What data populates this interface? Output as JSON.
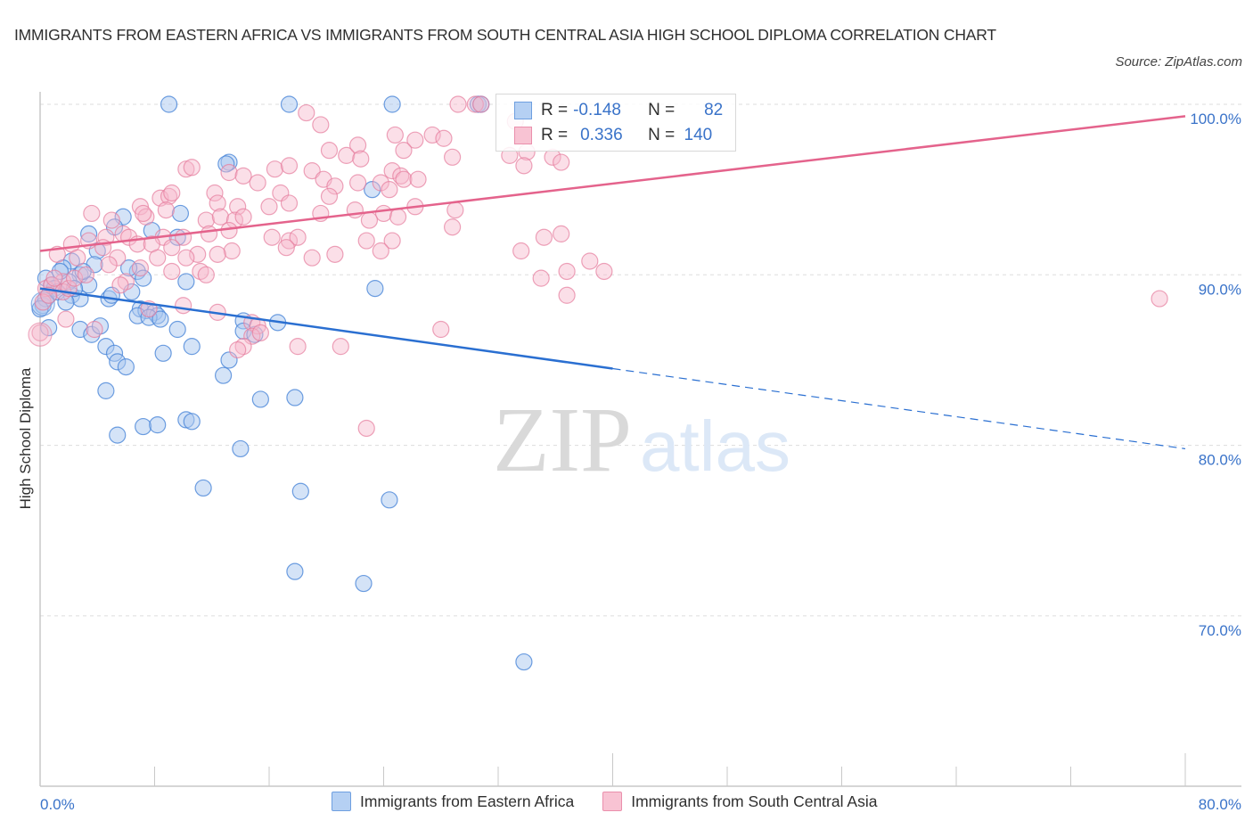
{
  "title": "IMMIGRANTS FROM EASTERN AFRICA VS IMMIGRANTS FROM SOUTH CENTRAL ASIA HIGH SCHOOL DIPLOMA CORRELATION CHART",
  "source": "Source: ZipAtlas.com",
  "watermark": {
    "zip": "ZIP",
    "atlas": "atlas"
  },
  "colors": {
    "blue_fill": "#a9c8f0",
    "blue_stroke": "#4a86d8",
    "blue_line": "#2a6fd1",
    "pink_fill": "#f6b9cc",
    "pink_stroke": "#e67c9c",
    "pink_line": "#e4638c",
    "tick_text": "#3a73c9"
  },
  "stats_legend": [
    {
      "series": "Immigrants from Eastern Africa",
      "r_label": "R =",
      "r_value": "-0.148",
      "n_label": "N =",
      "n_value": "82",
      "color": "blue"
    },
    {
      "series": "Immigrants from South Central Asia",
      "r_label": "R =",
      "r_value": "0.336",
      "n_label": "N =",
      "n_value": "140",
      "color": "pink"
    }
  ],
  "chart_data": {
    "type": "scatter",
    "title": "IMMIGRANTS FROM EASTERN AFRICA VS IMMIGRANTS FROM SOUTH CENTRAL ASIA HIGH SCHOOL DIPLOMA CORRELATION CHART",
    "xlabel": "",
    "ylabel": "High School Diploma",
    "xlim": [
      0,
      80
    ],
    "ylim": [
      61.5,
      101
    ],
    "x_tick_labels": [
      "0.0%",
      "80.0%"
    ],
    "y_ticks": [
      100,
      90,
      80,
      70
    ],
    "y_tick_labels": [
      "100.0%",
      "90.0%",
      "80.0%",
      "70.0%"
    ],
    "grid": true,
    "legend_position": "bottom",
    "series": [
      {
        "name": "Immigrants from Eastern Africa",
        "color": "blue",
        "R": -0.148,
        "N": 82,
        "trend": {
          "x0": 0,
          "y0": 89.2,
          "x1": 80,
          "y1": 79.8,
          "solid_until_x": 40
        },
        "points": [
          [
            9.0,
            100.0
          ],
          [
            17.4,
            100.0
          ],
          [
            24.6,
            100.0
          ],
          [
            30.6,
            100.0
          ],
          [
            13.2,
            96.6
          ],
          [
            13.0,
            96.5
          ],
          [
            23.2,
            95.0
          ],
          [
            5.8,
            93.4
          ],
          [
            9.8,
            93.6
          ],
          [
            3.4,
            92.4
          ],
          [
            5.2,
            92.8
          ],
          [
            7.8,
            92.6
          ],
          [
            9.6,
            92.2
          ],
          [
            4.0,
            91.4
          ],
          [
            2.2,
            90.8
          ],
          [
            3.8,
            90.6
          ],
          [
            1.6,
            90.4
          ],
          [
            2.8,
            90.0
          ],
          [
            6.8,
            90.2
          ],
          [
            7.2,
            89.8
          ],
          [
            10.2,
            89.6
          ],
          [
            0.4,
            89.8
          ],
          [
            0.8,
            89.4
          ],
          [
            1.0,
            89.2
          ],
          [
            0.6,
            88.8
          ],
          [
            0.2,
            88.2
          ],
          [
            0.4,
            88.6
          ],
          [
            3.4,
            89.4
          ],
          [
            2.2,
            88.8
          ],
          [
            2.8,
            88.6
          ],
          [
            4.8,
            88.6
          ],
          [
            5.0,
            88.8
          ],
          [
            6.4,
            89.0
          ],
          [
            7.0,
            88.0
          ],
          [
            7.4,
            87.9
          ],
          [
            8.0,
            87.8
          ],
          [
            8.2,
            87.6
          ],
          [
            6.8,
            87.6
          ],
          [
            7.6,
            87.5
          ],
          [
            8.4,
            87.4
          ],
          [
            9.6,
            86.8
          ],
          [
            14.2,
            87.3
          ],
          [
            16.6,
            87.2
          ],
          [
            14.2,
            86.7
          ],
          [
            15.0,
            86.5
          ],
          [
            0.6,
            86.9
          ],
          [
            2.8,
            86.8
          ],
          [
            3.6,
            86.5
          ],
          [
            4.6,
            85.8
          ],
          [
            5.2,
            85.4
          ],
          [
            8.6,
            85.4
          ],
          [
            10.6,
            85.8
          ],
          [
            13.2,
            85.0
          ],
          [
            5.4,
            84.9
          ],
          [
            6.0,
            84.6
          ],
          [
            12.8,
            84.1
          ],
          [
            4.6,
            83.2
          ],
          [
            15.4,
            82.7
          ],
          [
            17.8,
            82.8
          ],
          [
            10.2,
            81.5
          ],
          [
            10.6,
            81.4
          ],
          [
            7.2,
            81.1
          ],
          [
            8.2,
            81.2
          ],
          [
            5.4,
            80.6
          ],
          [
            14.0,
            79.8
          ],
          [
            11.4,
            77.5
          ],
          [
            18.2,
            77.3
          ],
          [
            24.4,
            76.8
          ],
          [
            17.8,
            72.6
          ],
          [
            22.6,
            71.9
          ],
          [
            33.8,
            67.3
          ],
          [
            23.4,
            89.2
          ],
          [
            30.8,
            100.0
          ],
          [
            1.2,
            89.0
          ],
          [
            2.0,
            89.6
          ],
          [
            0.0,
            88.0
          ],
          [
            1.8,
            88.4
          ],
          [
            4.2,
            87.0
          ],
          [
            2.4,
            89.2
          ],
          [
            3.0,
            90.2
          ],
          [
            6.2,
            90.4
          ],
          [
            1.4,
            90.2
          ]
        ]
      },
      {
        "name": "Immigrants from South Central Asia",
        "color": "pink",
        "R": 0.336,
        "N": 140,
        "trend": {
          "x0": 0,
          "y0": 91.4,
          "x1": 80,
          "y1": 99.3,
          "solid_until_x": 80
        },
        "points": [
          [
            29.2,
            100.0
          ],
          [
            30.4,
            100.0
          ],
          [
            30.8,
            100.0
          ],
          [
            33.2,
            99.0
          ],
          [
            18.6,
            99.5
          ],
          [
            19.6,
            98.8
          ],
          [
            24.8,
            98.2
          ],
          [
            26.2,
            97.9
          ],
          [
            27.4,
            98.2
          ],
          [
            28.2,
            98.0
          ],
          [
            20.2,
            97.3
          ],
          [
            21.4,
            97.0
          ],
          [
            22.2,
            97.6
          ],
          [
            22.4,
            96.8
          ],
          [
            25.4,
            97.3
          ],
          [
            28.8,
            96.9
          ],
          [
            32.8,
            97.0
          ],
          [
            34.0,
            97.2
          ],
          [
            35.8,
            96.9
          ],
          [
            36.4,
            96.6
          ],
          [
            33.8,
            96.4
          ],
          [
            16.4,
            96.2
          ],
          [
            17.4,
            96.4
          ],
          [
            19.0,
            96.1
          ],
          [
            10.2,
            96.2
          ],
          [
            10.6,
            96.3
          ],
          [
            13.2,
            96.0
          ],
          [
            14.2,
            95.8
          ],
          [
            15.2,
            95.4
          ],
          [
            19.8,
            95.6
          ],
          [
            20.6,
            95.2
          ],
          [
            22.2,
            95.4
          ],
          [
            23.8,
            95.4
          ],
          [
            24.6,
            96.1
          ],
          [
            25.2,
            95.8
          ],
          [
            25.4,
            95.6
          ],
          [
            24.4,
            95.0
          ],
          [
            26.4,
            95.6
          ],
          [
            16.8,
            94.8
          ],
          [
            17.4,
            94.2
          ],
          [
            20.2,
            94.6
          ],
          [
            12.2,
            94.8
          ],
          [
            8.4,
            94.5
          ],
          [
            9.0,
            94.6
          ],
          [
            9.2,
            94.8
          ],
          [
            7.0,
            94.0
          ],
          [
            8.8,
            93.8
          ],
          [
            12.4,
            94.2
          ],
          [
            13.8,
            94.0
          ],
          [
            16.0,
            94.0
          ],
          [
            19.6,
            93.6
          ],
          [
            22.0,
            93.8
          ],
          [
            24.0,
            93.6
          ],
          [
            25.0,
            93.4
          ],
          [
            29.0,
            93.8
          ],
          [
            26.2,
            94.0
          ],
          [
            3.6,
            93.6
          ],
          [
            5.0,
            93.2
          ],
          [
            7.4,
            93.4
          ],
          [
            7.2,
            93.6
          ],
          [
            11.6,
            93.2
          ],
          [
            12.6,
            93.4
          ],
          [
            13.6,
            93.2
          ],
          [
            14.2,
            93.4
          ],
          [
            23.0,
            93.2
          ],
          [
            28.8,
            92.8
          ],
          [
            5.8,
            92.4
          ],
          [
            4.6,
            92.2
          ],
          [
            6.2,
            92.2
          ],
          [
            8.6,
            92.2
          ],
          [
            10.0,
            92.2
          ],
          [
            11.8,
            92.4
          ],
          [
            13.2,
            92.6
          ],
          [
            16.2,
            92.2
          ],
          [
            17.4,
            92.0
          ],
          [
            18.0,
            92.2
          ],
          [
            22.8,
            92.0
          ],
          [
            24.6,
            92.0
          ],
          [
            35.2,
            92.2
          ],
          [
            36.4,
            92.4
          ],
          [
            2.2,
            91.8
          ],
          [
            3.4,
            92.0
          ],
          [
            4.4,
            91.6
          ],
          [
            6.8,
            91.8
          ],
          [
            7.8,
            91.8
          ],
          [
            9.2,
            91.6
          ],
          [
            11.0,
            91.2
          ],
          [
            13.4,
            91.4
          ],
          [
            17.2,
            91.6
          ],
          [
            20.6,
            91.2
          ],
          [
            23.8,
            91.4
          ],
          [
            33.6,
            91.4
          ],
          [
            1.2,
            91.2
          ],
          [
            2.6,
            91.0
          ],
          [
            5.4,
            91.0
          ],
          [
            8.2,
            91.0
          ],
          [
            10.2,
            91.0
          ],
          [
            12.4,
            91.2
          ],
          [
            19.0,
            91.0
          ],
          [
            38.4,
            90.8
          ],
          [
            36.8,
            90.2
          ],
          [
            35.0,
            89.8
          ],
          [
            39.4,
            90.2
          ],
          [
            4.8,
            90.6
          ],
          [
            7.0,
            90.4
          ],
          [
            9.2,
            90.2
          ],
          [
            11.2,
            90.2
          ],
          [
            11.6,
            90.0
          ],
          [
            6.0,
            89.6
          ],
          [
            1.6,
            89.6
          ],
          [
            0.4,
            89.2
          ],
          [
            0.8,
            89.4
          ],
          [
            1.6,
            89.0
          ],
          [
            2.0,
            89.2
          ],
          [
            2.4,
            89.8
          ],
          [
            0.2,
            88.4
          ],
          [
            36.8,
            88.8
          ],
          [
            78.2,
            88.6
          ],
          [
            7.6,
            88.0
          ],
          [
            10.0,
            88.2
          ],
          [
            12.4,
            87.8
          ],
          [
            14.8,
            87.2
          ],
          [
            15.2,
            87.0
          ],
          [
            1.8,
            87.4
          ],
          [
            3.8,
            86.8
          ],
          [
            14.8,
            86.4
          ],
          [
            15.4,
            86.6
          ],
          [
            0.0,
            86.6
          ],
          [
            14.2,
            85.8
          ],
          [
            28.0,
            86.8
          ],
          [
            18.0,
            85.8
          ],
          [
            21.0,
            85.8
          ],
          [
            22.8,
            81.0
          ],
          [
            13.8,
            85.6
          ],
          [
            1.0,
            89.8
          ],
          [
            3.2,
            90.0
          ],
          [
            5.6,
            89.4
          ],
          [
            0.6,
            88.8
          ]
        ]
      }
    ]
  }
}
